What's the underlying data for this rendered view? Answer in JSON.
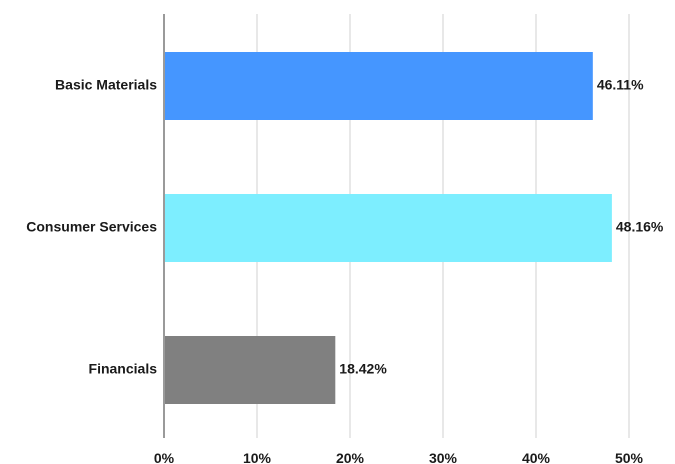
{
  "chart_data": {
    "type": "bar",
    "orientation": "horizontal",
    "title": "",
    "xlabel": "",
    "ylabel": "",
    "categories": [
      "Basic Materials",
      "Consumer Services",
      "Financials"
    ],
    "values": [
      46.11,
      48.16,
      18.42
    ],
    "value_labels": [
      "46.11%",
      "48.16%",
      "18.42%"
    ],
    "colors": [
      "#4596ff",
      "#7deeff",
      "#808080"
    ],
    "xlim": [
      0,
      50
    ],
    "xticks": [
      0,
      10,
      20,
      30,
      40,
      50
    ],
    "xtick_labels": [
      "0%",
      "10%",
      "20%",
      "30%",
      "40%",
      "50%"
    ],
    "grid": "vertical",
    "legend": "none"
  }
}
